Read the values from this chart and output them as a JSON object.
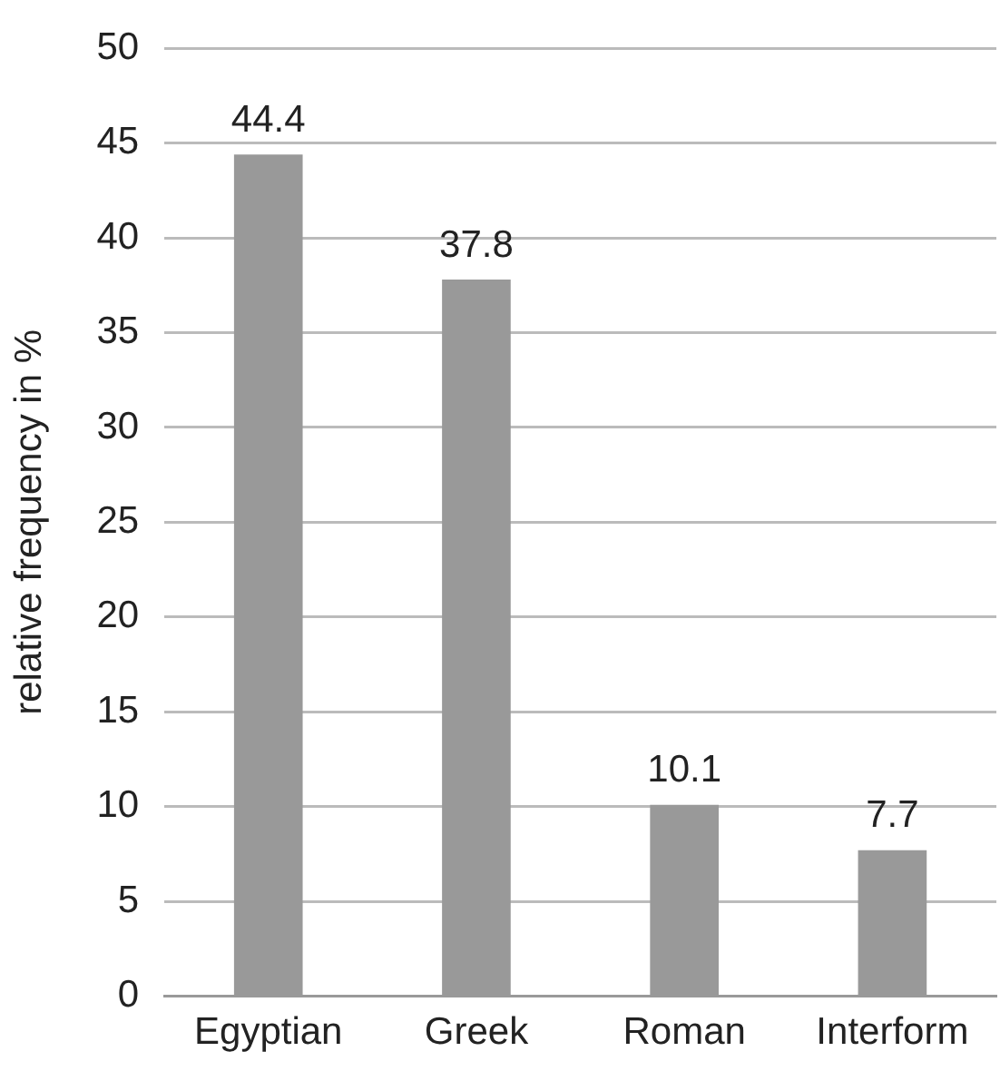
{
  "chart_data": {
    "type": "bar",
    "ylabel": "relative frequency in %",
    "categories": [
      "Egyptian",
      "Greek",
      "Roman",
      "Interform"
    ],
    "values": [
      44.4,
      37.8,
      10.1,
      7.7
    ],
    "color": "#999999",
    "ylim": [
      0,
      50
    ],
    "yticks": [
      0,
      5,
      10,
      15,
      20,
      25,
      30,
      35,
      40,
      45,
      50
    ],
    "grid": "y",
    "data_labels": true
  }
}
